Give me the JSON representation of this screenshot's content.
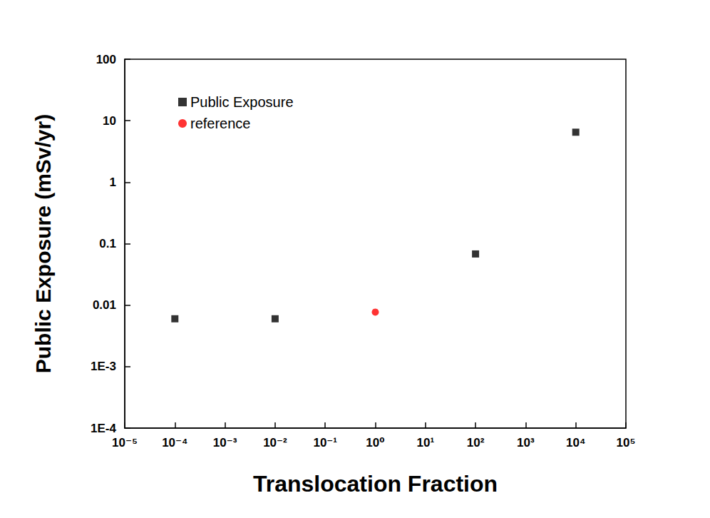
{
  "chart_data": {
    "type": "scatter",
    "x_label": "Translocation Fraction",
    "y_label": "Public Exposure (mSv/yr)",
    "log": true,
    "grid": false,
    "legend": "upper left",
    "xlim": [
      1e-05,
      100000
    ],
    "xticks": [
      {
        "value": 1e-05,
        "label": "10⁻⁵"
      },
      {
        "value": 0.0001,
        "label": "10⁻⁴"
      },
      {
        "value": 0.001,
        "label": "10⁻³"
      },
      {
        "value": 0.01,
        "label": "10⁻²"
      },
      {
        "value": 0.1,
        "label": "10⁻¹"
      },
      {
        "value": 1,
        "label": "10⁰"
      },
      {
        "value": 10,
        "label": "10¹"
      },
      {
        "value": 100,
        "label": "10²"
      },
      {
        "value": 1000,
        "label": "10³"
      },
      {
        "value": 10000,
        "label": "10⁴"
      },
      {
        "value": 100000,
        "label": "10⁵"
      }
    ],
    "ylim": [
      0.0001,
      100
    ],
    "yticks": [
      {
        "value": 0.0001,
        "label": "1E-4"
      },
      {
        "value": 0.001,
        "label": "1E-3"
      },
      0.01,
      0.1,
      1,
      10,
      100
    ],
    "series": [
      {
        "name": "Public Exposure",
        "color": "#000000",
        "marker": "square",
        "x": [
          0.0001,
          0.01,
          100,
          10000
        ],
        "values": [
          0.006,
          0.006,
          0.068,
          6.5
        ]
      },
      {
        "name": "reference",
        "color": "#ff0000",
        "marker": "circle",
        "x": [
          1
        ],
        "values": [
          0.0077
        ]
      }
    ]
  }
}
